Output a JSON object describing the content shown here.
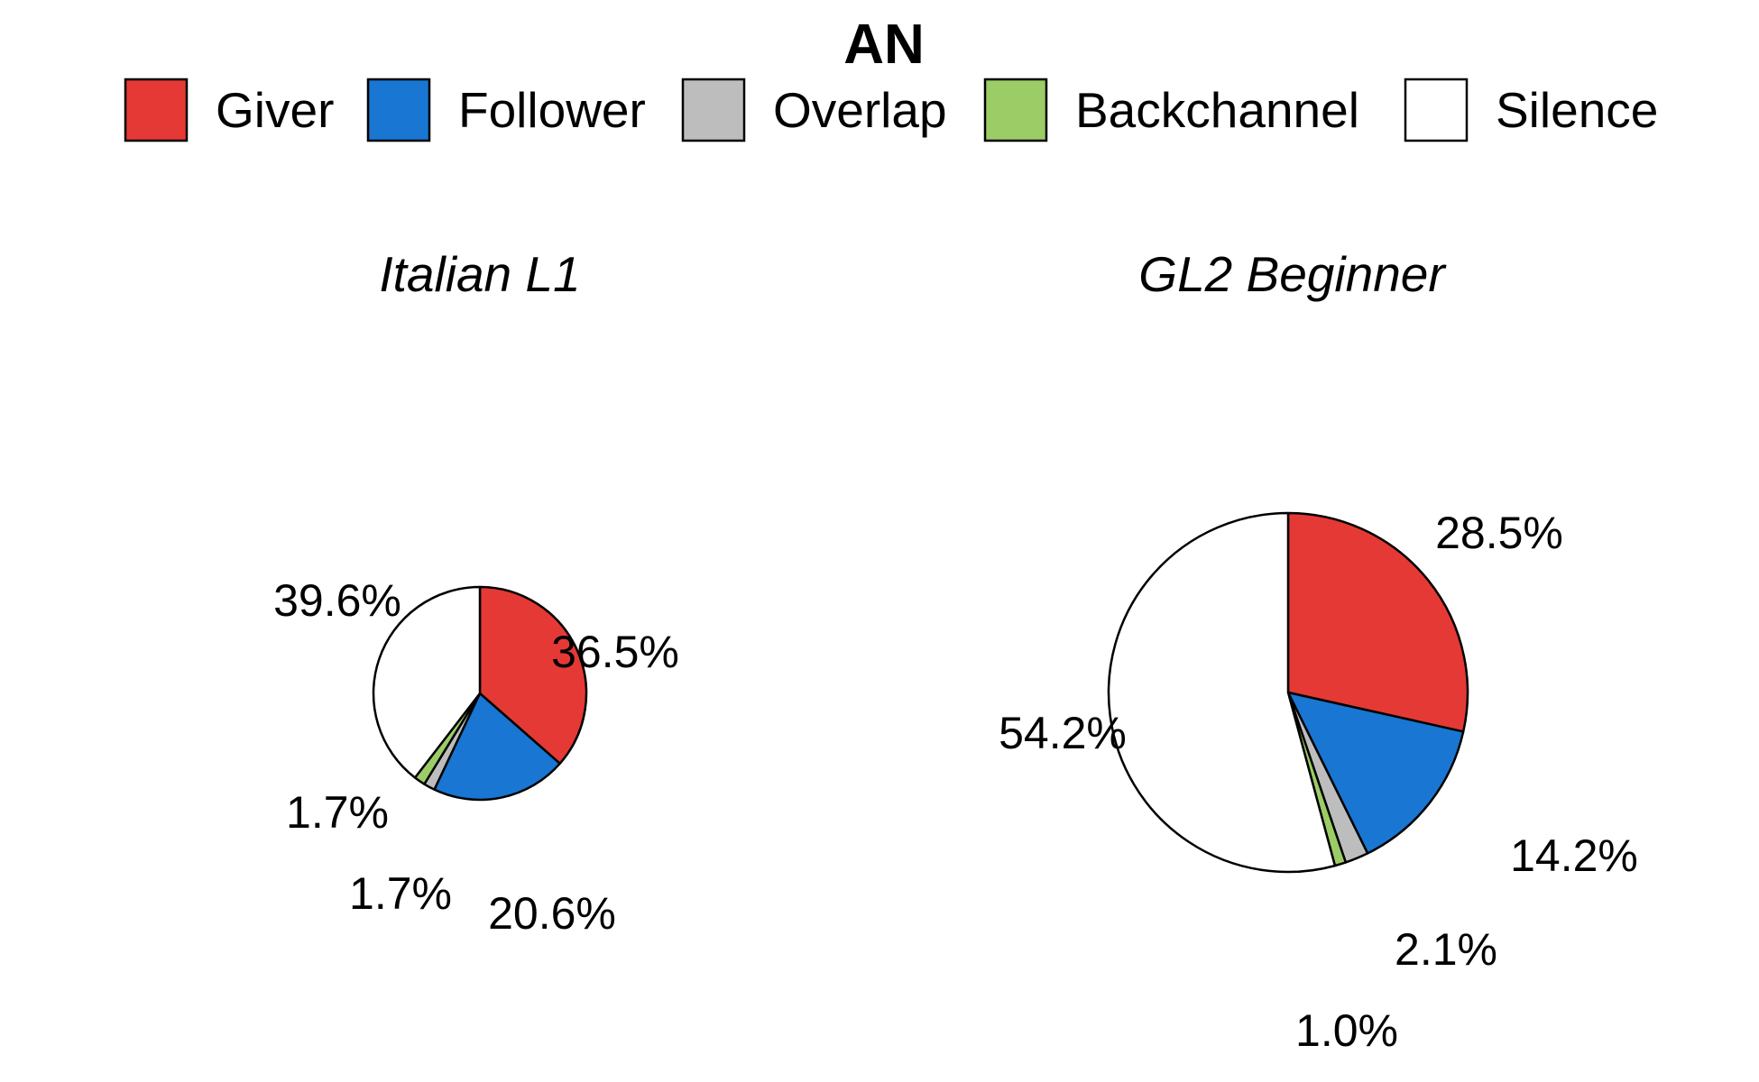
{
  "chart_data": {
    "type": "pie",
    "title": "AN",
    "legend": {
      "position": "top",
      "entries": [
        {
          "label": "Giver",
          "color": "#E53935"
        },
        {
          "label": "Follower",
          "color": "#1976D2"
        },
        {
          "label": "Overlap",
          "color": "#BDBDBD"
        },
        {
          "label": "Backchannel",
          "color": "#9CCC65"
        },
        {
          "label": "Silence",
          "color": "#FFFFFF"
        }
      ]
    },
    "panels": [
      {
        "title": "Italian L1",
        "slices": [
          {
            "category": "Giver",
            "value": 36.5,
            "label": "36.5%"
          },
          {
            "category": "Follower",
            "value": 20.6,
            "label": "20.6%"
          },
          {
            "category": "Overlap",
            "value": 1.7,
            "label": "1.7%"
          },
          {
            "category": "Backchannel",
            "value": 1.7,
            "label": "1.7%"
          },
          {
            "category": "Silence",
            "value": 39.6,
            "label": "39.6%"
          }
        ]
      },
      {
        "title": "GL2 Beginner",
        "slices": [
          {
            "category": "Giver",
            "value": 28.5,
            "label": "28.5%"
          },
          {
            "category": "Follower",
            "value": 14.2,
            "label": "14.2%"
          },
          {
            "category": "Overlap",
            "value": 2.1,
            "label": "2.1%"
          },
          {
            "category": "Backchannel",
            "value": 1.0,
            "label": "1.0%"
          },
          {
            "category": "Silence",
            "value": 54.2,
            "label": "54.2%"
          }
        ]
      }
    ]
  }
}
